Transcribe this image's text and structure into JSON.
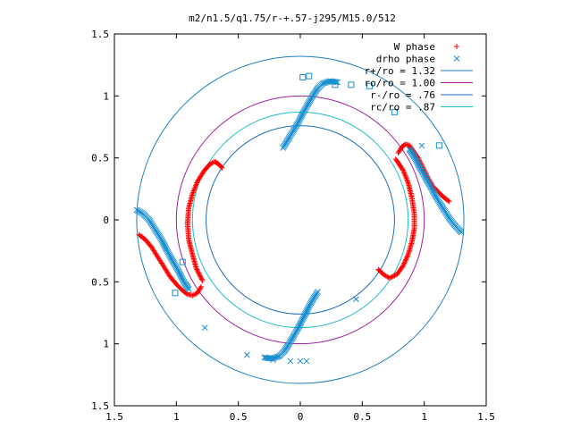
{
  "chart_data": {
    "type": "scatter",
    "title": "m2/n1.5/q1.75/r-+.57-j295/M15.0/512",
    "xlim": [
      -1.5,
      1.5
    ],
    "ylim": [
      -1.5,
      1.5
    ],
    "x_ticks": [
      -1.5,
      -1,
      -0.5,
      0,
      0.5,
      1,
      1.5
    ],
    "y_ticks": [
      -1.5,
      -1,
      -0.5,
      0,
      0.5,
      1,
      1.5
    ],
    "x_tick_labels": [
      "1.5",
      "1",
      "0.5",
      "0",
      "0.5",
      "1",
      "1.5"
    ],
    "y_tick_labels": [
      "1.5",
      "1",
      "0.5",
      "0",
      "0.5",
      "1",
      "1.5"
    ],
    "legend_position": "top-right",
    "circles": [
      {
        "name": "r+/ro = 1.32",
        "radius": 1.32,
        "color": "#1f7fbf"
      },
      {
        "name": "ro/ro = 1.00",
        "radius": 1.0,
        "color": "#a020a0"
      },
      {
        "name": "r-/ro = .76",
        "radius": 0.76,
        "color": "#1f6fbf"
      },
      {
        "name": "rc/ro = .87",
        "radius": 0.87,
        "color": "#20c0c0"
      }
    ],
    "series": [
      {
        "name": "W phase",
        "marker": "plus",
        "color": "#ff0000",
        "arms": [
          [
            [
              0.79,
              0.54
            ],
            [
              0.82,
              0.59
            ],
            [
              0.85,
              0.61
            ],
            [
              0.88,
              0.6
            ],
            [
              0.91,
              0.56
            ],
            [
              0.95,
              0.5
            ],
            [
              0.99,
              0.42
            ],
            [
              1.03,
              0.34
            ],
            [
              1.07,
              0.27
            ],
            [
              1.12,
              0.22
            ],
            [
              1.16,
              0.18
            ],
            [
              1.2,
              0.15
            ]
          ],
          [
            [
              0.77,
              0.49
            ],
            [
              0.83,
              0.4
            ],
            [
              0.87,
              0.3
            ],
            [
              0.9,
              0.18
            ],
            [
              0.92,
              0.05
            ],
            [
              0.92,
              -0.07
            ],
            [
              0.9,
              -0.18
            ],
            [
              0.87,
              -0.28
            ],
            [
              0.83,
              -0.37
            ],
            [
              0.78,
              -0.44
            ],
            [
              0.72,
              -0.47
            ],
            [
              0.67,
              -0.44
            ],
            [
              0.63,
              -0.4
            ]
          ],
          [
            [
              -0.8,
              -0.54
            ],
            [
              -0.83,
              -0.59
            ],
            [
              -0.87,
              -0.61
            ],
            [
              -0.91,
              -0.6
            ],
            [
              -0.95,
              -0.57
            ],
            [
              -1.0,
              -0.52
            ],
            [
              -1.05,
              -0.46
            ],
            [
              -1.1,
              -0.38
            ],
            [
              -1.15,
              -0.3
            ],
            [
              -1.2,
              -0.22
            ],
            [
              -1.25,
              -0.16
            ],
            [
              -1.3,
              -0.12
            ]
          ],
          [
            [
              -0.79,
              -0.49
            ],
            [
              -0.84,
              -0.39
            ],
            [
              -0.87,
              -0.28
            ],
            [
              -0.9,
              -0.16
            ],
            [
              -0.91,
              -0.03
            ],
            [
              -0.9,
              0.1
            ],
            [
              -0.87,
              0.21
            ],
            [
              -0.83,
              0.31
            ],
            [
              -0.78,
              0.39
            ],
            [
              -0.73,
              0.45
            ],
            [
              -0.69,
              0.47
            ],
            [
              -0.66,
              0.45
            ],
            [
              -0.63,
              0.42
            ]
          ]
        ]
      },
      {
        "name": "drho phase",
        "marker": "cross",
        "color": "#1a8fd0",
        "arms": [
          [
            [
              -0.14,
              0.58
            ],
            [
              -0.08,
              0.68
            ],
            [
              -0.02,
              0.78
            ],
            [
              0.02,
              0.86
            ],
            [
              0.06,
              0.93
            ],
            [
              0.1,
              1.0
            ],
            [
              0.14,
              1.06
            ],
            [
              0.18,
              1.1
            ],
            [
              0.24,
              1.12
            ],
            [
              0.3,
              1.11
            ]
          ],
          [
            [
              0.14,
              -0.58
            ],
            [
              0.08,
              -0.68
            ],
            [
              0.03,
              -0.78
            ],
            [
              -0.01,
              -0.86
            ],
            [
              -0.05,
              -0.93
            ],
            [
              -0.09,
              -1.0
            ],
            [
              -0.13,
              -1.06
            ],
            [
              -0.17,
              -1.1
            ],
            [
              -0.23,
              -1.12
            ],
            [
              -0.29,
              -1.11
            ]
          ],
          [
            [
              -1.32,
              0.08
            ],
            [
              -1.27,
              0.05
            ],
            [
              -1.22,
              0.0
            ],
            [
              -1.17,
              -0.08
            ],
            [
              -1.12,
              -0.16
            ],
            [
              -1.08,
              -0.24
            ],
            [
              -1.03,
              -0.33
            ],
            [
              -0.98,
              -0.42
            ],
            [
              -0.94,
              -0.5
            ],
            [
              -0.9,
              -0.56
            ]
          ],
          [
            [
              1.3,
              -0.1
            ],
            [
              1.26,
              -0.06
            ],
            [
              1.21,
              0.0
            ],
            [
              1.16,
              0.08
            ],
            [
              1.11,
              0.16
            ],
            [
              1.06,
              0.25
            ],
            [
              1.01,
              0.34
            ],
            [
              0.96,
              0.43
            ],
            [
              0.92,
              0.51
            ],
            [
              0.88,
              0.57
            ]
          ]
        ],
        "scatter": [
          [
            0.98,
            0.6
          ],
          [
            -0.77,
            -0.87
          ],
          [
            -0.43,
            -1.09
          ],
          [
            -0.22,
            -1.13
          ],
          [
            -0.08,
            -1.14
          ],
          [
            0.0,
            -1.14
          ],
          [
            0.45,
            -0.64
          ],
          [
            0.05,
            -1.14
          ]
        ],
        "squares": [
          [
            0.02,
            1.15
          ],
          [
            0.07,
            1.16
          ],
          [
            0.28,
            1.09
          ],
          [
            0.41,
            1.09
          ],
          [
            0.56,
            1.08
          ],
          [
            0.76,
            0.87
          ],
          [
            1.12,
            0.6
          ],
          [
            -1.01,
            -0.59
          ],
          [
            -0.95,
            -0.34
          ]
        ]
      }
    ]
  }
}
